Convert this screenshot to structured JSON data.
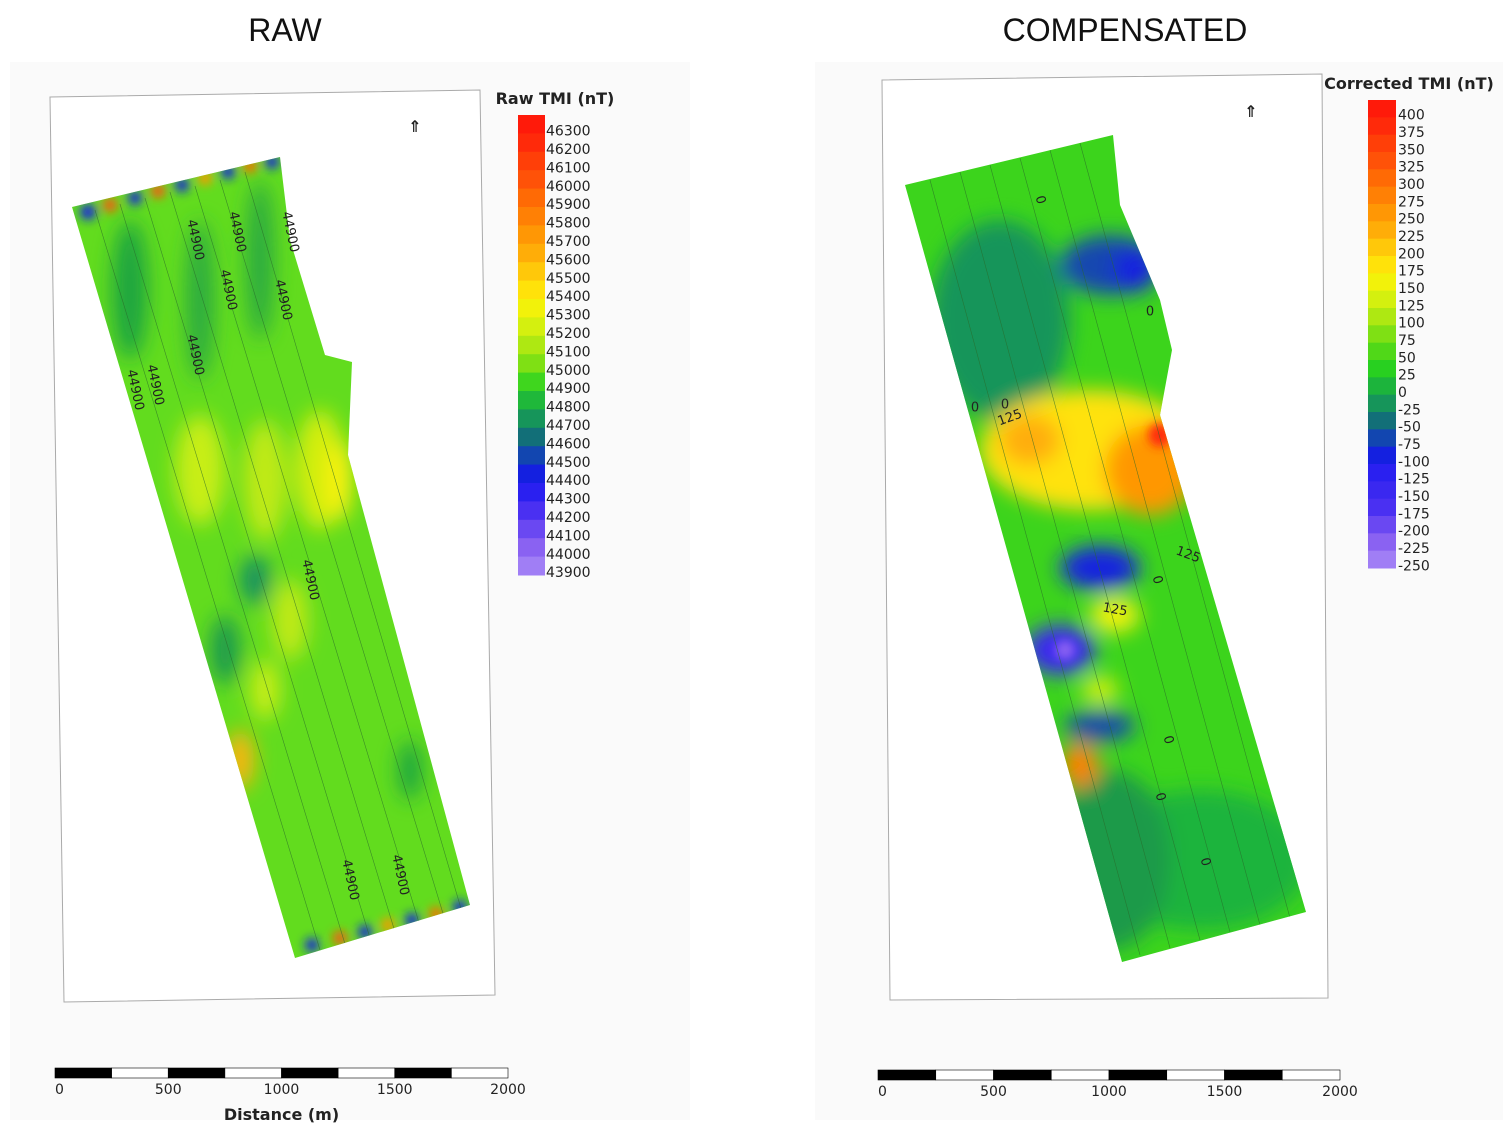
{
  "panels": [
    {
      "title": "RAW",
      "legend": {
        "title": "Raw TMI (nT)",
        "labels": [
          "46300",
          "46200",
          "46100",
          "46000",
          "45900",
          "45800",
          "45700",
          "45600",
          "45500",
          "45400",
          "45300",
          "45200",
          "45100",
          "45000",
          "44900",
          "44800",
          "44700",
          "44600",
          "44500",
          "44400",
          "44300",
          "44200",
          "44100",
          "44000",
          "43900"
        ],
        "colors": [
          "#ff1a0a",
          "#ff2a0a",
          "#ff3f08",
          "#ff5208",
          "#ff6a05",
          "#ff8005",
          "#ff9705",
          "#ffad08",
          "#ffc80a",
          "#ffe20a",
          "#f2f20a",
          "#d4f00f",
          "#aee812",
          "#7fe014",
          "#3fd61e",
          "#1fb83a",
          "#16955a",
          "#126f78",
          "#1246b0",
          "#1420e0",
          "#2a20f0",
          "#4a30f2",
          "#6a48f2",
          "#8a62f2",
          "#a07ef5"
        ]
      },
      "contour_labels": [
        "44900",
        "44900",
        "44900",
        "44900",
        "44900",
        "44900",
        "44900",
        "44900",
        "44900",
        "44900",
        "44900"
      ],
      "scale_bar": {
        "labels": [
          "0",
          "500",
          "1000",
          "1500",
          "2000"
        ],
        "axis_label": "Distance (m)"
      }
    },
    {
      "title": "COMPENSATED",
      "legend": {
        "title": "Corrected TMI (nT)",
        "labels": [
          "400",
          "375",
          "350",
          "325",
          "300",
          "275",
          "250",
          "225",
          "200",
          "175",
          "150",
          "125",
          "100",
          "75",
          "50",
          "25",
          "0",
          "-25",
          "-50",
          "-75",
          "-100",
          "-125",
          "-150",
          "-175",
          "-200",
          "-225",
          "-250"
        ],
        "colors": [
          "#ff1a0a",
          "#ff2a0a",
          "#ff3f08",
          "#ff5208",
          "#ff6a05",
          "#ff8005",
          "#ff9705",
          "#ffad08",
          "#ffc80a",
          "#ffe20a",
          "#f2f20a",
          "#d4f00f",
          "#aee812",
          "#7fe014",
          "#50d818",
          "#28d020",
          "#1cb43c",
          "#16955a",
          "#126f78",
          "#1246b0",
          "#1420e0",
          "#2a20f0",
          "#3a28f0",
          "#4a30f2",
          "#6a48f2",
          "#8a62f2",
          "#a07ef5"
        ]
      },
      "contour_labels": [
        "0",
        "0",
        "0",
        "0",
        "0",
        "0",
        "0",
        "0",
        "125",
        "125",
        "125"
      ],
      "scale_bar": {
        "labels": [
          "0",
          "500",
          "1000",
          "1500",
          "2000"
        ]
      }
    }
  ]
}
